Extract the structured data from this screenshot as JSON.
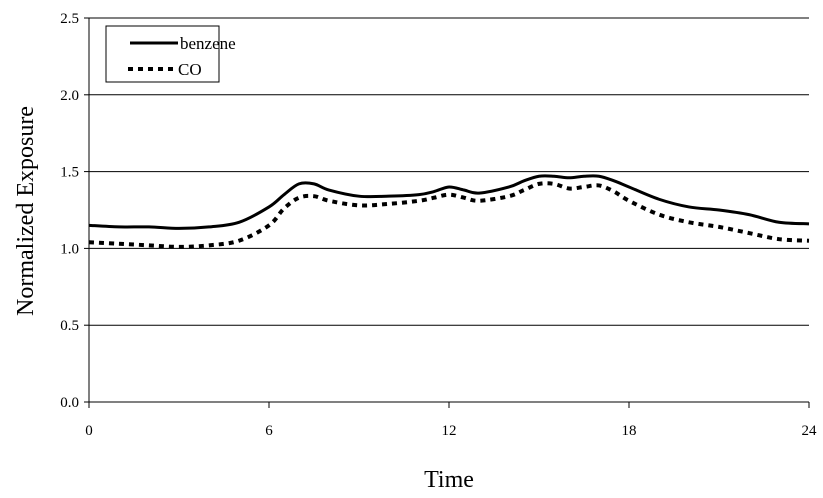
{
  "chart_data": {
    "type": "line",
    "title": "",
    "xlabel": "Time",
    "ylabel": "Normalized Exposure",
    "xlim": [
      0,
      24
    ],
    "ylim": [
      0,
      2.5
    ],
    "x_ticks": [
      0,
      6,
      12,
      18,
      24
    ],
    "x_tick_labels": [
      "0",
      "6",
      "12",
      "18",
      "24"
    ],
    "y_ticks": [
      0.0,
      0.5,
      1.0,
      1.5,
      2.0,
      2.5
    ],
    "y_tick_labels": [
      "0.0",
      "0.5",
      "1.0",
      "1.5",
      "2.0",
      "2.5"
    ],
    "grid": "horizontal",
    "legend_position": "top-left",
    "series": [
      {
        "name": "benzene",
        "style": "solid",
        "color": "#000000",
        "x": [
          0,
          1,
          2,
          3,
          4,
          5,
          6,
          6.5,
          7,
          7.5,
          8,
          9,
          10,
          11,
          11.5,
          12,
          12.5,
          13,
          14,
          14.5,
          15,
          15.5,
          16,
          16.5,
          17,
          17.5,
          18,
          19,
          20,
          21,
          22,
          23,
          24
        ],
        "y": [
          1.15,
          1.14,
          1.14,
          1.13,
          1.14,
          1.17,
          1.27,
          1.35,
          1.42,
          1.42,
          1.38,
          1.34,
          1.34,
          1.35,
          1.37,
          1.4,
          1.38,
          1.36,
          1.4,
          1.44,
          1.47,
          1.47,
          1.46,
          1.47,
          1.47,
          1.44,
          1.4,
          1.32,
          1.27,
          1.25,
          1.22,
          1.17,
          1.16
        ]
      },
      {
        "name": "CO",
        "style": "dotted",
        "color": "#000000",
        "x": [
          0,
          1,
          2,
          3,
          4,
          5,
          6,
          6.5,
          7,
          7.5,
          8,
          9,
          10,
          11,
          11.5,
          12,
          12.5,
          13,
          14,
          14.5,
          15,
          15.5,
          16,
          16.5,
          17,
          17.5,
          18,
          19,
          20,
          21,
          22,
          23,
          24
        ],
        "y": [
          1.04,
          1.03,
          1.02,
          1.01,
          1.02,
          1.05,
          1.15,
          1.26,
          1.33,
          1.34,
          1.31,
          1.28,
          1.29,
          1.31,
          1.33,
          1.35,
          1.33,
          1.31,
          1.34,
          1.38,
          1.42,
          1.42,
          1.39,
          1.4,
          1.41,
          1.37,
          1.31,
          1.22,
          1.17,
          1.14,
          1.1,
          1.06,
          1.05
        ]
      }
    ]
  }
}
